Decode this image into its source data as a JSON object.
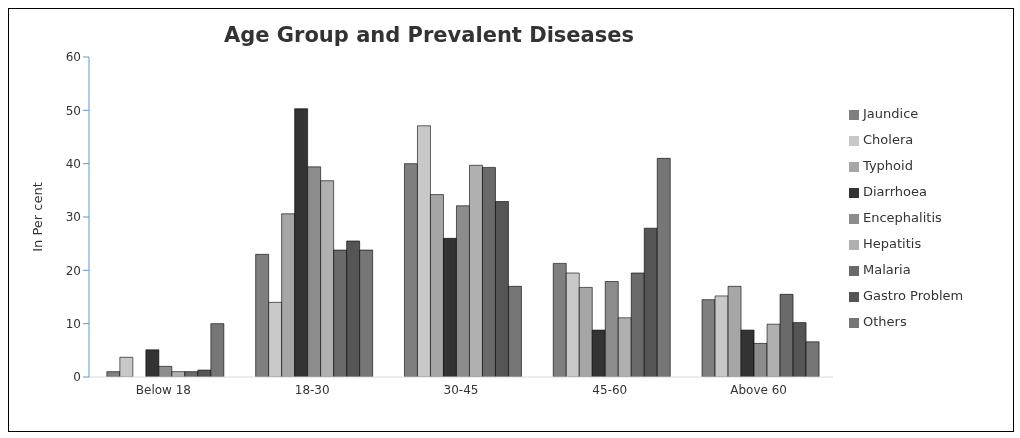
{
  "chart_data": {
    "type": "bar",
    "title": "Age Group and Prevalent Diseases",
    "ylabel": "In Per cent",
    "categories": [
      "Below 18",
      "18-30",
      "30-45",
      "45-60",
      "Above 60"
    ],
    "series": [
      {
        "name": "Jaundice",
        "color": "#7f7f7f",
        "values": [
          1,
          23,
          40,
          21.3,
          14.5
        ]
      },
      {
        "name": "Cholera",
        "color": "#c8c8c8",
        "values": [
          3.7,
          14,
          47.1,
          19.5,
          15.2
        ]
      },
      {
        "name": "Typhoid",
        "color": "#a6a6a6",
        "values": [
          0,
          30.6,
          34.2,
          16.8,
          17
        ]
      },
      {
        "name": "Diarrhoea",
        "color": "#333333",
        "values": [
          5.1,
          50.3,
          26,
          8.8,
          8.8
        ]
      },
      {
        "name": "Encephalitis",
        "color": "#8c8c8c",
        "values": [
          2,
          39.4,
          32.1,
          17.9,
          6.3
        ]
      },
      {
        "name": "Hepatitis",
        "color": "#b0b0b0",
        "values": [
          1,
          36.8,
          39.7,
          11.1,
          9.9
        ]
      },
      {
        "name": "Malaria",
        "color": "#6a6a6a",
        "values": [
          1,
          23.8,
          39.3,
          19.5,
          15.5
        ]
      },
      {
        "name": "Gastro Problem",
        "color": "#555555",
        "values": [
          1.3,
          25.5,
          32.9,
          27.9,
          10.2
        ]
      },
      {
        "name": "Others",
        "color": "#767676",
        "values": [
          10,
          23.8,
          17,
          41,
          6.6
        ]
      }
    ],
    "ylim": [
      0,
      60
    ],
    "yticks": [
      0,
      10,
      20,
      30,
      40,
      50,
      60
    ],
    "grid": false,
    "legend": "right"
  }
}
